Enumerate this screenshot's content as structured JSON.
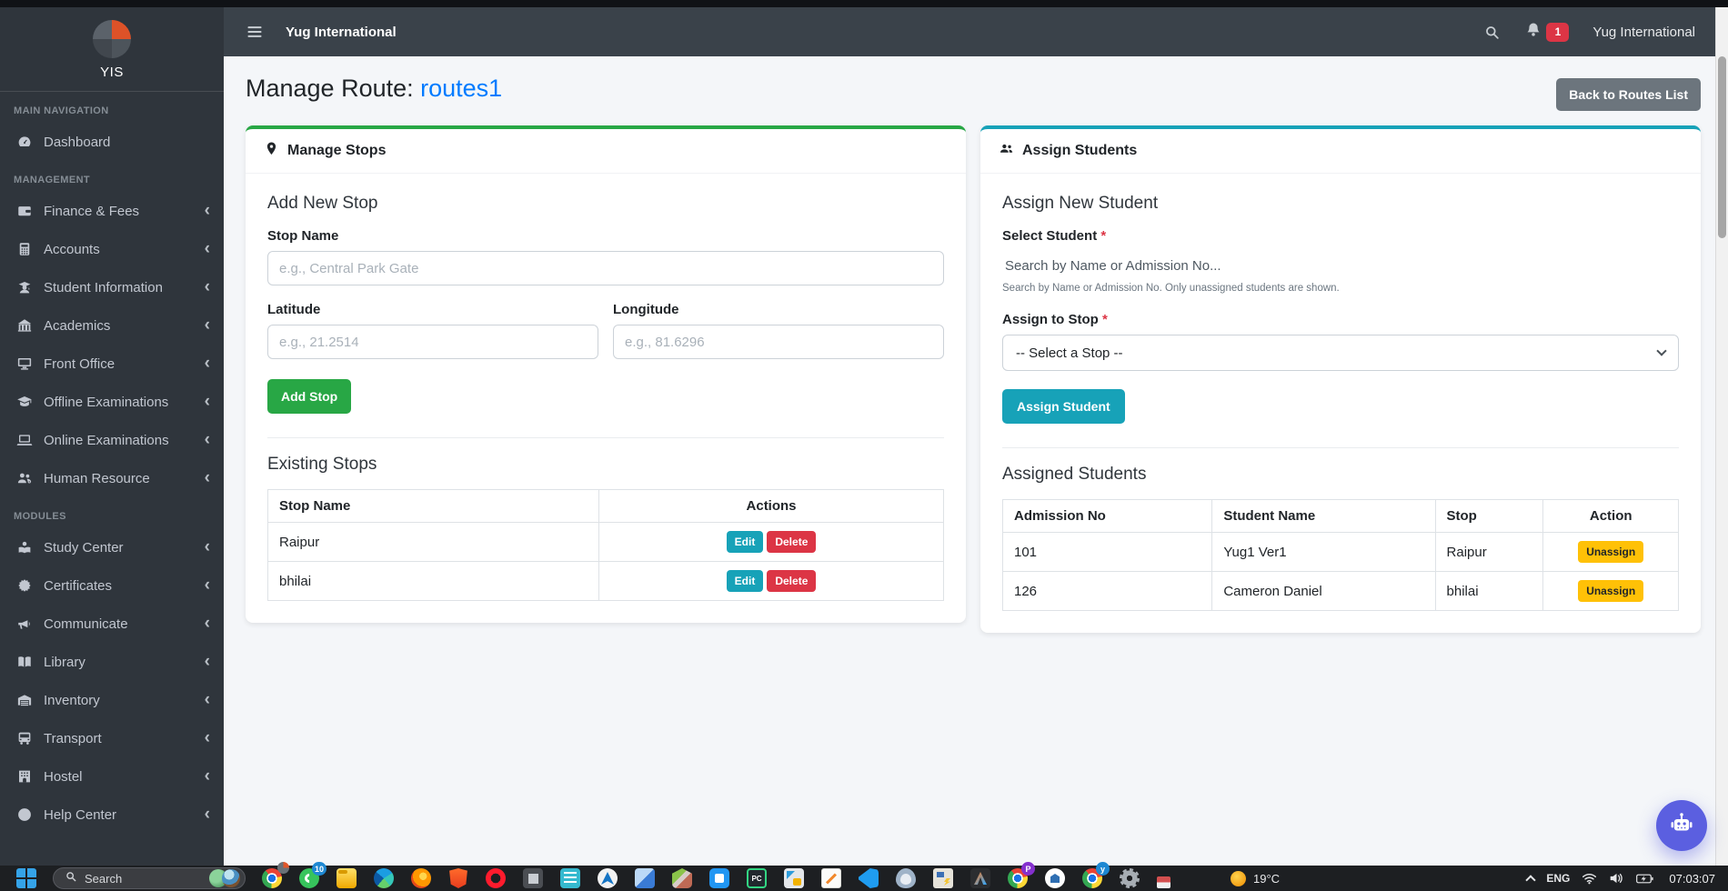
{
  "navbar": {
    "brand": "Yug International",
    "notification_count": "1",
    "user_name": "Yug International"
  },
  "sidebar": {
    "logo_text": "YIS",
    "sections": [
      {
        "label": "MAIN NAVIGATION",
        "items": [
          {
            "icon": "dashboard-icon",
            "label": "Dashboard",
            "chevron": false
          }
        ]
      },
      {
        "label": "MANAGEMENT",
        "items": [
          {
            "icon": "wallet-icon",
            "label": "Finance & Fees",
            "chevron": true
          },
          {
            "icon": "calculator-icon",
            "label": "Accounts",
            "chevron": true
          },
          {
            "icon": "student-icon",
            "label": "Student Information",
            "chevron": true
          },
          {
            "icon": "school-icon",
            "label": "Academics",
            "chevron": true
          },
          {
            "icon": "desktop-icon",
            "label": "Front Office",
            "chevron": true
          },
          {
            "icon": "graduation-cap-icon",
            "label": "Offline Examinations",
            "chevron": true
          },
          {
            "icon": "laptop-icon",
            "label": "Online Examinations",
            "chevron": true
          },
          {
            "icon": "users-gear-icon",
            "label": "Human Resource",
            "chevron": true
          }
        ]
      },
      {
        "label": "MODULES",
        "items": [
          {
            "icon": "study-icon",
            "label": "Study Center",
            "chevron": true
          },
          {
            "icon": "certificate-icon",
            "label": "Certificates",
            "chevron": true
          },
          {
            "icon": "bullhorn-icon",
            "label": "Communicate",
            "chevron": true
          },
          {
            "icon": "book-icon",
            "label": "Library",
            "chevron": true
          },
          {
            "icon": "warehouse-icon",
            "label": "Inventory",
            "chevron": true
          },
          {
            "icon": "bus-icon",
            "label": "Transport",
            "chevron": true
          },
          {
            "icon": "hotel-icon",
            "label": "Hostel",
            "chevron": true
          },
          {
            "icon": "help-icon",
            "label": "Help Center",
            "chevron": true
          }
        ]
      }
    ]
  },
  "page": {
    "title_prefix": "Manage Route: ",
    "route_name": "routes1",
    "back_button": "Back to Routes List"
  },
  "manage_stops": {
    "card_title": "Manage Stops",
    "section_title": "Add New Stop",
    "fields": {
      "stop_name_label": "Stop Name",
      "stop_name_placeholder": "e.g., Central Park Gate",
      "latitude_label": "Latitude",
      "latitude_placeholder": "e.g., 21.2514",
      "longitude_label": "Longitude",
      "longitude_placeholder": "e.g., 81.6296"
    },
    "add_button": "Add Stop",
    "existing_title": "Existing Stops",
    "table": {
      "headers": [
        "Stop Name",
        "Actions"
      ],
      "rows": [
        {
          "name": "Raipur"
        },
        {
          "name": "bhilai"
        }
      ],
      "edit_label": "Edit",
      "delete_label": "Delete"
    }
  },
  "assign_students": {
    "card_title": "Assign Students",
    "section_title": "Assign New Student",
    "select_student_label": "Select Student",
    "required_mark": "*",
    "search_placeholder": "Search by Name or Admission No...",
    "help_text": "Search by Name or Admission No. Only unassigned students are shown.",
    "assign_to_stop_label": "Assign to Stop",
    "stop_select_value": "-- Select a Stop --",
    "assign_button": "Assign Student",
    "assigned_title": "Assigned Students",
    "table": {
      "headers": [
        "Admission No",
        "Student Name",
        "Stop",
        "Action"
      ],
      "rows": [
        {
          "admission_no": "101",
          "student_name": "Yug1 Ver1",
          "stop": "Raipur"
        },
        {
          "admission_no": "126",
          "student_name": "Cameron Daniel",
          "stop": "bhilai"
        }
      ],
      "unassign_label": "Unassign"
    }
  },
  "taskbar": {
    "search_label": "Search",
    "weather_temp": "19°C",
    "tray_language": "ENG",
    "time": "07:03:07",
    "icons": [
      {
        "name": "chrome",
        "badge": "pie"
      },
      {
        "name": "phone-link",
        "badge": "10",
        "badge_color": "#1e88d2"
      },
      {
        "name": "file-explorer"
      },
      {
        "name": "edge"
      },
      {
        "name": "firefox"
      },
      {
        "name": "brave"
      },
      {
        "name": "opera"
      },
      {
        "name": "photos"
      },
      {
        "name": "notepad-plus"
      },
      {
        "name": "app-installer"
      },
      {
        "name": "virtualbox"
      },
      {
        "name": "prism"
      },
      {
        "name": "remote-desktop"
      },
      {
        "name": "pycharm",
        "text": "PC"
      },
      {
        "name": "anydesk"
      },
      {
        "name": "sticky-notes"
      },
      {
        "name": "vscode"
      },
      {
        "name": "postgresql"
      },
      {
        "name": "putty"
      },
      {
        "name": "android-studio"
      },
      {
        "name": "chrome-profile-p",
        "badge": "P",
        "badge_color": "#8430ce"
      },
      {
        "name": "bank-app"
      },
      {
        "name": "chrome-profile-y",
        "badge": "y",
        "badge_color": "#1e88d2"
      },
      {
        "name": "settings-gear"
      },
      {
        "name": "tray-misc"
      }
    ]
  },
  "colors": {
    "green": "#28a745",
    "teal": "#17a2b8",
    "red": "#dc3545",
    "yellow": "#ffc107",
    "gray_button": "#6c757d",
    "link_blue": "#007bff",
    "chat_fab": "#5b5fe0",
    "sidebar_bg": "#2f353c",
    "navbar_bg": "#3a424a"
  }
}
